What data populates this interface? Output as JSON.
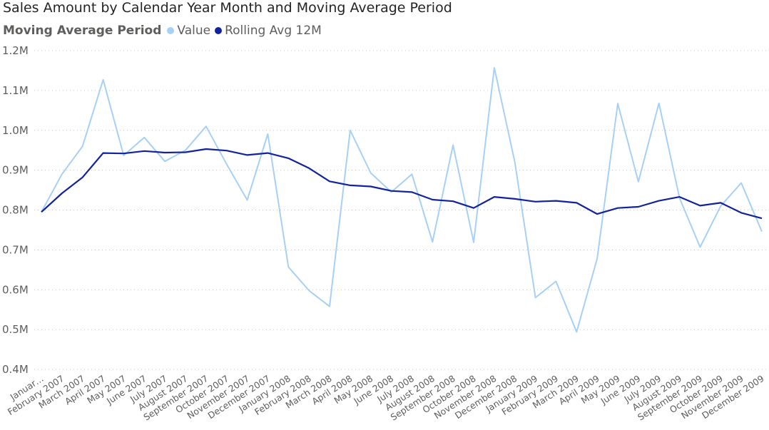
{
  "chart_data": {
    "type": "line",
    "title": "Sales Amount by Calendar Year Month and Moving Average Period",
    "legend_title": "Moving Average Period",
    "legend_position": "top-left",
    "grid": true,
    "ylim": [
      400000,
      1200000
    ],
    "y_ticks": [
      {
        "value": 1200000,
        "label": "1.2M"
      },
      {
        "value": 1100000,
        "label": "1.1M"
      },
      {
        "value": 1000000,
        "label": "1.0M"
      },
      {
        "value": 900000,
        "label": "0.9M"
      },
      {
        "value": 800000,
        "label": "0.8M"
      },
      {
        "value": 700000,
        "label": "0.7M"
      },
      {
        "value": 600000,
        "label": "0.6M"
      },
      {
        "value": 500000,
        "label": "0.5M"
      },
      {
        "value": 400000,
        "label": "0.4M"
      }
    ],
    "categories": [
      "Januar…",
      "February 2007",
      "March 2007",
      "April 2007",
      "May 2007",
      "June 2007",
      "July 2007",
      "August 2007",
      "September 2007",
      "October 2007",
      "November 2007",
      "December 2007",
      "January 2008",
      "February 2008",
      "March 2008",
      "April 2008",
      "May 2008",
      "June 2008",
      "July 2008",
      "August 2008",
      "September 2008",
      "October 2008",
      "November 2008",
      "December 2008",
      "January 2009",
      "February 2009",
      "March 2009",
      "April 2009",
      "May 2009",
      "June 2009",
      "July 2009",
      "August 2009",
      "September 2009",
      "October 2009",
      "November 2009",
      "December 2009"
    ],
    "series": [
      {
        "name": "Value",
        "color": "#a7d0f5",
        "values": [
          795000,
          890000,
          960000,
          1127000,
          937000,
          982000,
          922000,
          950000,
          1010000,
          915000,
          825000,
          991000,
          657000,
          598000,
          558000,
          1000000,
          893000,
          845000,
          890000,
          720000,
          963000,
          719000,
          1157000,
          920000,
          580000,
          621000,
          494000,
          678000,
          1067000,
          871000,
          1068000,
          830000,
          707000,
          810000,
          868000,
          746000
        ]
      },
      {
        "name": "Rolling Avg 12M",
        "color": "#12239e",
        "values": [
          795000,
          842000,
          882000,
          943000,
          942000,
          948000,
          944000,
          945000,
          953000,
          949000,
          938000,
          943000,
          930000,
          905000,
          872000,
          862000,
          859000,
          848000,
          845000,
          826000,
          822000,
          805000,
          833000,
          828000,
          821000,
          823000,
          818000,
          790000,
          805000,
          808000,
          823000,
          833000,
          811000,
          818000,
          793000,
          779000
        ]
      }
    ]
  }
}
